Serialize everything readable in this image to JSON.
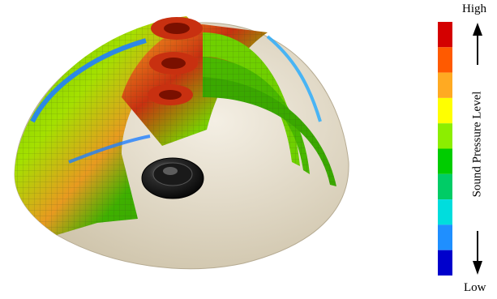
{
  "legend": {
    "high_label": "High",
    "low_label": "Low",
    "axis_label": "Sound Pressure Level",
    "colors_top_to_bottom": [
      "#d40000",
      "#ff5a00",
      "#ffaa22",
      "#ffff00",
      "#8cee00",
      "#00cc00",
      "#00cc66",
      "#00dddd",
      "#1f8fff",
      "#0000cc"
    ]
  },
  "scene": {
    "dome_color": "#ece4d4",
    "speaker_color": "#1a1a1a"
  }
}
